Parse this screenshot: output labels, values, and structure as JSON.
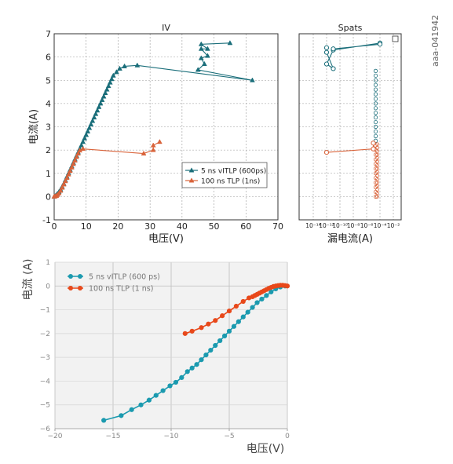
{
  "figure_id": "aaa-041942",
  "chart_data": [
    {
      "type": "scatter",
      "title": "IV",
      "xlabel": "电压(V)",
      "ylabel": "电流(A)",
      "xlim": [
        0,
        70
      ],
      "ylim": [
        -1,
        7
      ],
      "xticks": [
        0,
        10,
        20,
        30,
        40,
        50,
        60,
        70
      ],
      "yticks": [
        -1,
        0,
        1,
        2,
        3,
        4,
        5,
        6,
        7
      ],
      "grid": true,
      "legend_position": "lower-right",
      "series": [
        {
          "name": "5 ns vITLP (600ps)",
          "color": "#1a6e7a",
          "marker": "triangle",
          "points": [
            [
              0,
              0
            ],
            [
              0.3,
              0.02
            ],
            [
              0.6,
              0.06
            ],
            [
              1,
              0.12
            ],
            [
              1.5,
              0.2
            ],
            [
              2,
              0.3
            ],
            [
              2.5,
              0.42
            ],
            [
              3,
              0.55
            ],
            [
              3.5,
              0.7
            ],
            [
              4,
              0.85
            ],
            [
              4.5,
              1.0
            ],
            [
              5,
              1.15
            ],
            [
              5.5,
              1.3
            ],
            [
              6,
              1.45
            ],
            [
              6.5,
              1.6
            ],
            [
              7,
              1.75
            ],
            [
              7.5,
              1.9
            ],
            [
              8,
              2.05
            ],
            [
              8.5,
              2.2
            ],
            [
              9,
              2.35
            ],
            [
              9.5,
              2.5
            ],
            [
              10,
              2.65
            ],
            [
              10.5,
              2.8
            ],
            [
              11,
              2.95
            ],
            [
              11.5,
              3.1
            ],
            [
              12,
              3.25
            ],
            [
              12.5,
              3.4
            ],
            [
              13,
              3.55
            ],
            [
              13.5,
              3.7
            ],
            [
              14,
              3.85
            ],
            [
              14.5,
              4.0
            ],
            [
              15,
              4.15
            ],
            [
              15.5,
              4.3
            ],
            [
              16,
              4.45
            ],
            [
              16.5,
              4.6
            ],
            [
              17,
              4.75
            ],
            [
              17.5,
              4.9
            ],
            [
              18,
              5.05
            ],
            [
              18.5,
              5.2
            ],
            [
              19.5,
              5.35
            ],
            [
              20.5,
              5.5
            ],
            [
              22,
              5.6
            ],
            [
              26,
              5.64
            ],
            [
              62,
              5.0
            ],
            [
              45,
              5.45
            ],
            [
              47,
              5.7
            ],
            [
              46,
              5.95
            ],
            [
              48,
              6.05
            ],
            [
              46,
              6.35
            ],
            [
              48,
              6.35
            ],
            [
              46,
              6.55
            ],
            [
              55,
              6.6
            ]
          ]
        },
        {
          "name": "100 ns TLP (1ns)",
          "color": "#d9633a",
          "marker": "triangle",
          "points": [
            [
              0,
              0
            ],
            [
              0.3,
              0.01
            ],
            [
              0.7,
              0.03
            ],
            [
              1,
              0.07
            ],
            [
              1.5,
              0.14
            ],
            [
              2,
              0.25
            ],
            [
              2.5,
              0.38
            ],
            [
              3,
              0.52
            ],
            [
              3.5,
              0.66
            ],
            [
              4,
              0.8
            ],
            [
              4.5,
              0.95
            ],
            [
              5,
              1.1
            ],
            [
              5.5,
              1.25
            ],
            [
              6,
              1.4
            ],
            [
              6.5,
              1.55
            ],
            [
              7,
              1.7
            ],
            [
              7.5,
              1.85
            ],
            [
              8,
              1.98
            ],
            [
              9,
              2.05
            ],
            [
              28,
              1.85
            ],
            [
              31,
              2.0
            ],
            [
              31,
              2.2
            ],
            [
              33,
              2.35
            ]
          ]
        }
      ]
    },
    {
      "type": "scatter",
      "title": "Spats",
      "xlabel": "漏电流(A)",
      "xscale": "log",
      "xticks": [
        "10⁻¹⁴",
        "10⁻¹²",
        "10⁻¹⁰",
        "10⁻⁸",
        "10⁻⁶",
        "10⁻⁴",
        "10⁻²"
      ],
      "ylim": [
        -1,
        7
      ],
      "grid": true,
      "series": [
        {
          "name": "5 ns vITLP (600ps)",
          "color": "#1a6e7a",
          "marker": "circle-open",
          "points": [
            [
              "1e-12",
              6.4
            ],
            [
              "1e-12",
              6.2
            ],
            [
              "1e-11",
              5.5
            ],
            [
              "1e-12",
              5.7
            ],
            [
              "1e-11",
              6.3
            ],
            [
              "1e-4",
              6.6
            ],
            [
              "1e-4",
              6.55
            ],
            [
              "1e-11",
              6.35
            ]
          ]
        },
        {
          "name": "100 ns TLP (1ns)",
          "color": "#d9633a",
          "marker": "circle-open",
          "points": [
            [
              "1e-12",
              1.9
            ],
            [
              "1e-5",
              2.05
            ],
            [
              "1e-5",
              2.3
            ]
          ]
        }
      ]
    },
    {
      "type": "line",
      "title": "",
      "xlabel": "电压(V)",
      "ylabel": "电流 (A)",
      "xlim": [
        -20,
        0
      ],
      "ylim": [
        -6,
        1
      ],
      "xticks": [
        -20,
        -15,
        -10,
        -5,
        0
      ],
      "yticks": [
        1,
        0,
        -1,
        -2,
        -3,
        -4,
        -5,
        -6
      ],
      "grid": true,
      "legend_position": "top-left",
      "series": [
        {
          "name": "5 ns vITLP (600 ps)",
          "color": "#1b9aaf",
          "marker": "circle",
          "points": [
            [
              -15.8,
              -5.65
            ],
            [
              -14.3,
              -5.45
            ],
            [
              -13.4,
              -5.2
            ],
            [
              -12.6,
              -5.0
            ],
            [
              -11.9,
              -4.8
            ],
            [
              -11.3,
              -4.6
            ],
            [
              -10.7,
              -4.4
            ],
            [
              -10.1,
              -4.2
            ],
            [
              -9.6,
              -4.05
            ],
            [
              -9.1,
              -3.85
            ],
            [
              -8.6,
              -3.6
            ],
            [
              -8.2,
              -3.45
            ],
            [
              -7.8,
              -3.3
            ],
            [
              -7.4,
              -3.1
            ],
            [
              -7.0,
              -2.9
            ],
            [
              -6.6,
              -2.7
            ],
            [
              -6.2,
              -2.5
            ],
            [
              -5.8,
              -2.3
            ],
            [
              -5.4,
              -2.1
            ],
            [
              -5.0,
              -1.9
            ],
            [
              -4.6,
              -1.7
            ],
            [
              -4.2,
              -1.5
            ],
            [
              -3.8,
              -1.3
            ],
            [
              -3.4,
              -1.1
            ],
            [
              -3.0,
              -0.9
            ],
            [
              -2.6,
              -0.7
            ],
            [
              -2.2,
              -0.55
            ],
            [
              -1.8,
              -0.4
            ],
            [
              -1.4,
              -0.25
            ],
            [
              -1.0,
              -0.12
            ],
            [
              -0.6,
              -0.04
            ],
            [
              -0.2,
              0.0
            ]
          ]
        },
        {
          "name": "100 ns TLP (1 ns)",
          "color": "#e8481a",
          "marker": "circle",
          "points": [
            [
              -8.8,
              -2.0
            ],
            [
              -8.2,
              -1.9
            ],
            [
              -7.4,
              -1.75
            ],
            [
              -6.8,
              -1.6
            ],
            [
              -6.2,
              -1.45
            ],
            [
              -5.6,
              -1.25
            ],
            [
              -5.0,
              -1.05
            ],
            [
              -4.4,
              -0.85
            ],
            [
              -3.8,
              -0.65
            ],
            [
              -3.3,
              -0.5
            ],
            [
              -3.0,
              -0.45
            ],
            [
              -2.8,
              -0.4
            ],
            [
              -2.6,
              -0.35
            ],
            [
              -2.4,
              -0.3
            ],
            [
              -2.2,
              -0.25
            ],
            [
              -2.0,
              -0.2
            ],
            [
              -1.8,
              -0.15
            ],
            [
              -1.6,
              -0.1
            ],
            [
              -1.4,
              -0.06
            ],
            [
              -1.2,
              -0.02
            ],
            [
              -1.0,
              0.0
            ],
            [
              -0.8,
              0.02
            ],
            [
              -0.6,
              0.03
            ],
            [
              -0.4,
              0.03
            ],
            [
              -0.2,
              0.02
            ],
            [
              0,
              0.0
            ]
          ]
        }
      ]
    }
  ]
}
